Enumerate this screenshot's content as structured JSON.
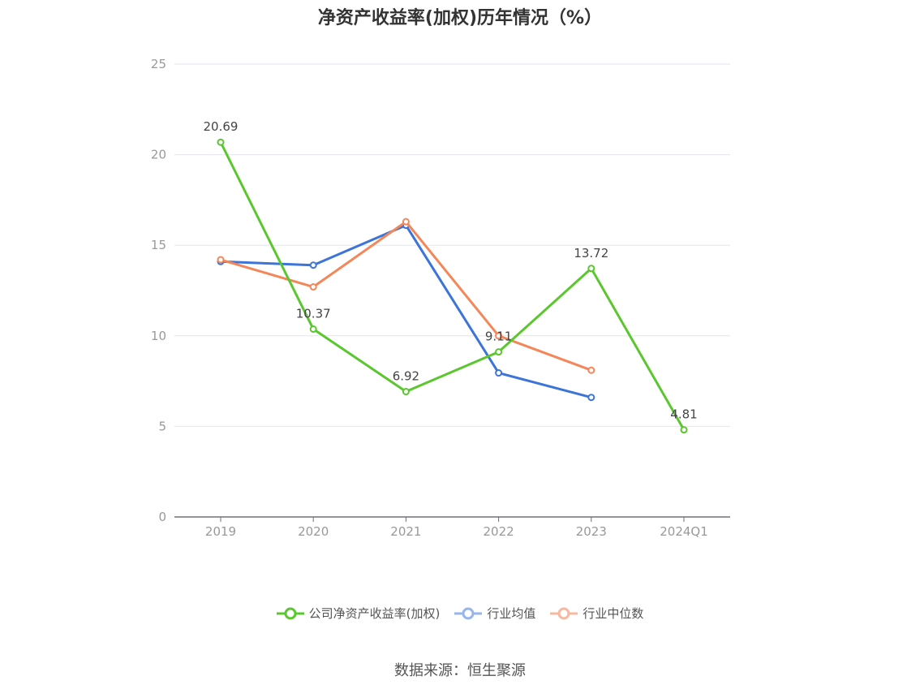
{
  "chart_data": {
    "type": "line",
    "title": "净资产收益率(加权)历年情况（%）",
    "categories": [
      "2019",
      "2020",
      "2021",
      "2022",
      "2023",
      "2024Q1"
    ],
    "ylim": [
      0,
      25
    ],
    "yticks": [
      0,
      5,
      10,
      15,
      20,
      25
    ],
    "grid": true,
    "legend_position": "bottom",
    "series": [
      {
        "name": "公司净资产收益率(加权)",
        "color": "#5ac72f",
        "values": [
          20.69,
          10.37,
          6.92,
          9.11,
          13.72,
          4.81
        ],
        "labels": [
          "20.69",
          "10.37",
          "6.92",
          "9.11",
          "13.72",
          "4.81"
        ]
      },
      {
        "name": "行业均值",
        "color": "#3d74d9",
        "values": [
          14.1,
          13.9,
          16.1,
          7.95,
          6.6,
          null
        ]
      },
      {
        "name": "行业中位数",
        "color": "#f4875a",
        "values": [
          14.2,
          12.7,
          16.3,
          10.0,
          8.1,
          null
        ]
      }
    ]
  },
  "source": "数据来源：恒生聚源"
}
